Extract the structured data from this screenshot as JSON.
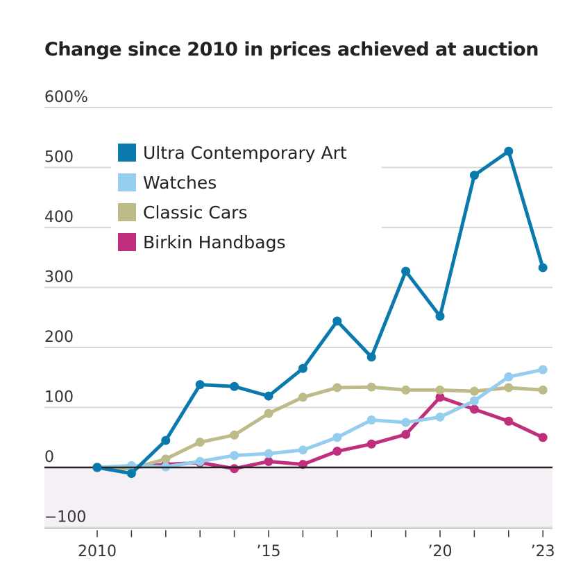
{
  "chart_data": {
    "type": "line",
    "title": "Change since 2010 in prices achieved at auction",
    "x": [
      2010,
      2011,
      2012,
      2013,
      2014,
      2015,
      2016,
      2017,
      2018,
      2019,
      2020,
      2021,
      2022,
      2023
    ],
    "x_tick_labels": [
      {
        "year": 2010,
        "label": "2010"
      },
      {
        "year": 2015,
        "label": "’15"
      },
      {
        "year": 2020,
        "label": "’20"
      },
      {
        "year": 2023,
        "label": "’23"
      }
    ],
    "y_ticks": [
      {
        "value": 600,
        "label": "600%"
      },
      {
        "value": 500,
        "label": "500"
      },
      {
        "value": 400,
        "label": "400"
      },
      {
        "value": 300,
        "label": "300"
      },
      {
        "value": 200,
        "label": "200"
      },
      {
        "value": 100,
        "label": "100"
      },
      {
        "value": 0,
        "label": "0"
      },
      {
        "value": -100,
        "label": "−100"
      }
    ],
    "ylim": [
      -100,
      600
    ],
    "grid": true,
    "legend_position": "top-left",
    "negative_region_color": "#f5f0f5",
    "series": [
      {
        "name": "Ultra Contemporary Art",
        "color": "#0a7aad",
        "values": [
          0,
          -10,
          45,
          138,
          135,
          119,
          165,
          244,
          184,
          327,
          252,
          487,
          527,
          333
        ]
      },
      {
        "name": "Watches",
        "color": "#94cdee",
        "values": [
          0,
          3,
          1,
          10,
          20,
          23,
          29,
          50,
          79,
          75,
          84,
          111,
          151,
          163
        ]
      },
      {
        "name": "Classic Cars",
        "color": "#bdbb87",
        "values": [
          0,
          -2,
          14,
          42,
          54,
          90,
          117,
          133,
          134,
          129,
          129,
          127,
          133,
          129
        ]
      },
      {
        "name": "Birkin Handbags",
        "color": "#bf2f7e",
        "values": [
          0,
          0,
          5,
          8,
          -2,
          10,
          5,
          27,
          39,
          55,
          117,
          97,
          77,
          50
        ]
      }
    ]
  }
}
